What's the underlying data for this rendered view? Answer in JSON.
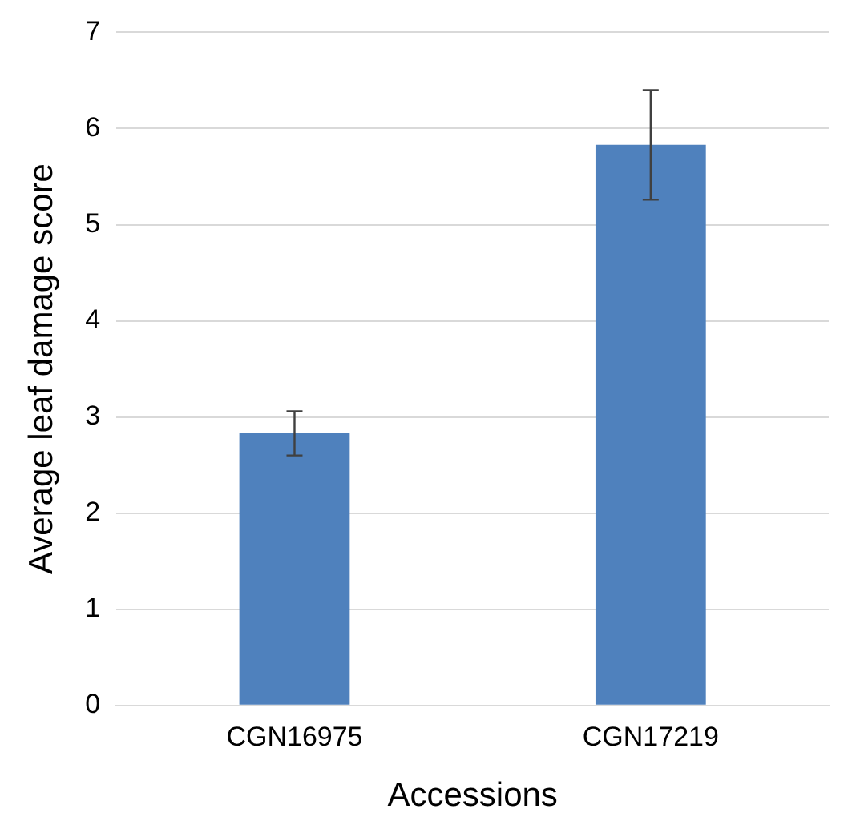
{
  "chart_data": {
    "type": "bar",
    "xlabel": "Accessions",
    "ylabel": "Average leaf damage score",
    "categories": [
      "CGN16975",
      "CGN17219"
    ],
    "values": [
      2.83,
      5.83
    ],
    "errors": [
      0.23,
      0.57
    ],
    "color": "#4f81bd",
    "ylim": [
      0,
      7
    ],
    "yticks": [
      0,
      1,
      2,
      3,
      4,
      5,
      6,
      7
    ],
    "grid": "y",
    "legend": false
  }
}
